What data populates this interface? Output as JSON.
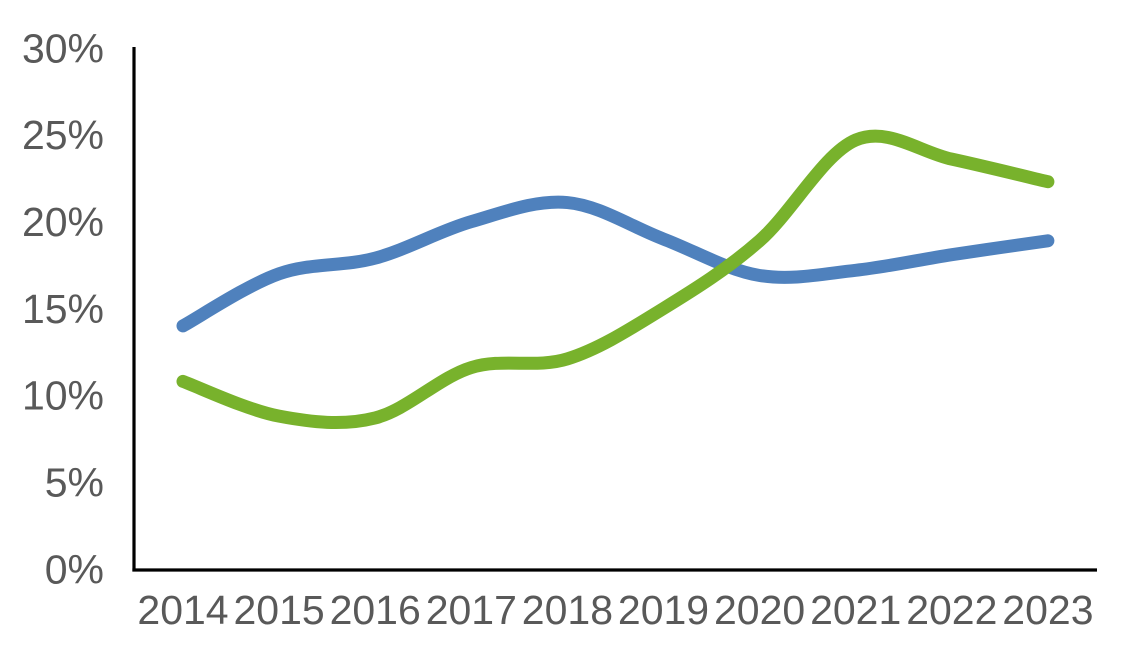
{
  "page": {
    "background_color": "#FFFFFF"
  },
  "chart_data": {
    "type": "line",
    "smooth": true,
    "x": [
      2014,
      2015,
      2016,
      2017,
      2018,
      2019,
      2020,
      2021,
      2022,
      2023
    ],
    "x_tick_labels": [
      "2014",
      "2015",
      "2016",
      "2017",
      "2018",
      "2019",
      "2020",
      "2021",
      "2022",
      "2023"
    ],
    "series": [
      {
        "name": "blue-series",
        "color": "#4F81BD",
        "values": [
          14.0,
          17.0,
          17.9,
          20.0,
          21.1,
          19.0,
          16.9,
          17.2,
          18.1,
          18.9
        ]
      },
      {
        "name": "green-series",
        "color": "#78B22C",
        "values": [
          10.8,
          8.8,
          8.7,
          11.6,
          12.1,
          15.0,
          18.9,
          24.7,
          23.6,
          22.3
        ]
      }
    ],
    "ylim": [
      0,
      30
    ],
    "y_ticks": [
      0,
      5,
      10,
      15,
      20,
      25,
      30
    ],
    "y_tick_labels": [
      "0%",
      "5%",
      "10%",
      "15%",
      "20%",
      "25%",
      "30%"
    ],
    "grid": false,
    "legend": "none",
    "line_width": 13,
    "axis_color": "#000000",
    "tick_label_color": "#595959"
  }
}
